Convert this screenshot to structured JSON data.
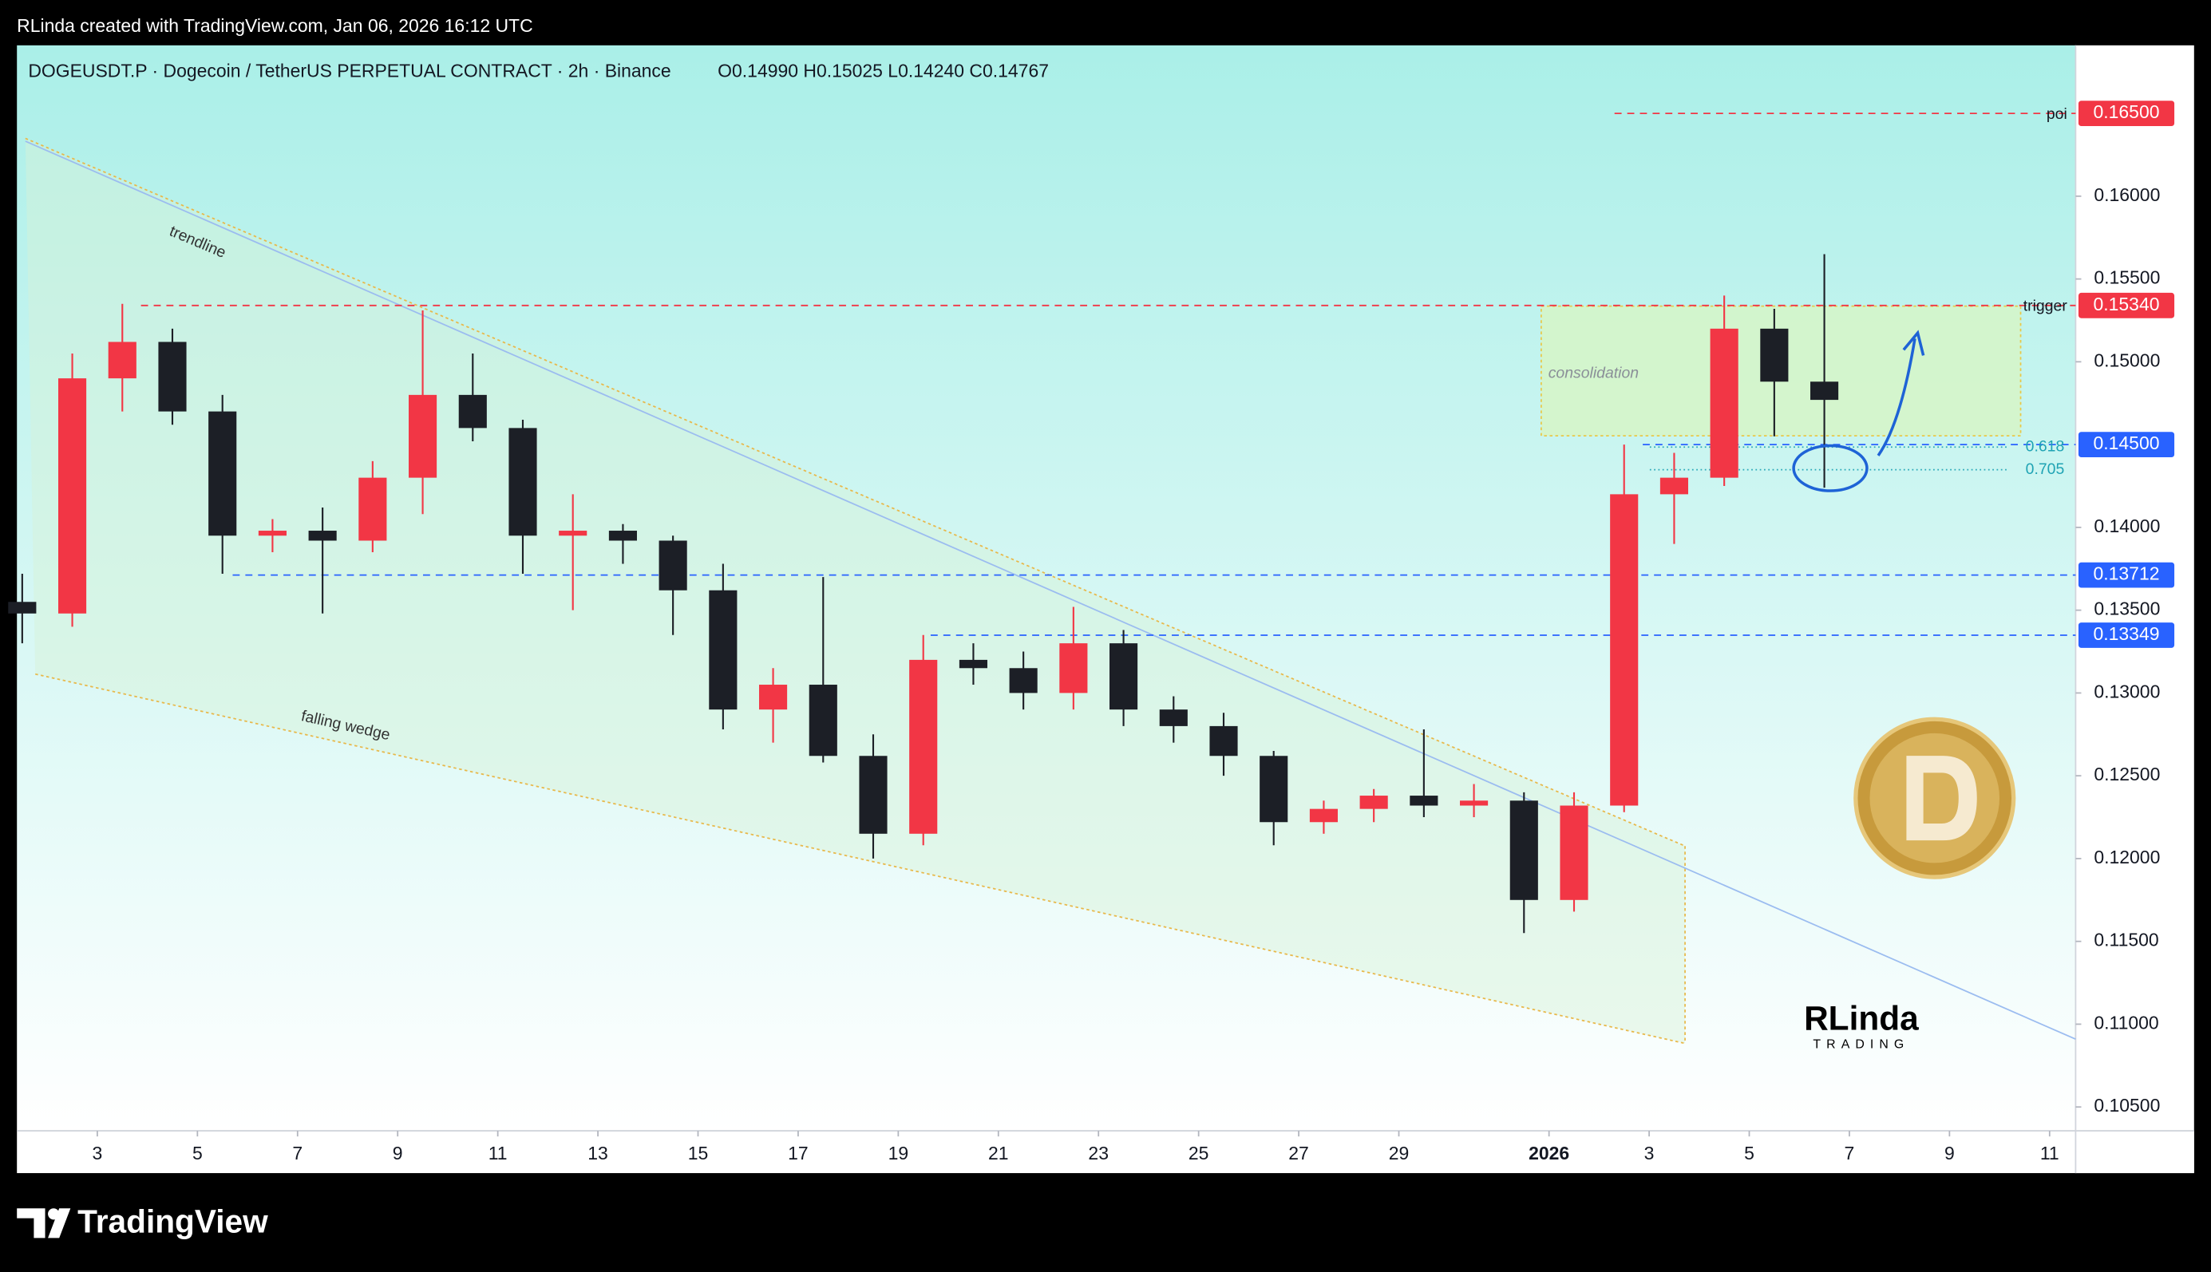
{
  "chart_data": {
    "type": "candlestick",
    "attribution": "RLinda created with TradingView.com, Jan 06, 2026 16:12 UTC",
    "title": "DOGEUSDT.P · Dogecoin / TetherUS PERPETUAL CONTRACT · 2h · Binance",
    "ohlc_text": "O0.14990 H0.15025 L0.14240 C0.14767",
    "x": [
      1.5,
      2.5,
      3.5,
      4.5,
      5.5,
      6.5,
      7.5,
      8.5,
      9.5,
      10.5,
      11.5,
      12.5,
      13.5,
      14.5,
      15.5,
      16.5,
      17.5,
      18.5,
      19.5,
      20.5,
      21.5,
      22.5,
      23.5,
      24.5,
      25.5,
      26.5,
      27.5,
      28.5,
      29.5,
      30.5,
      31.5,
      32.5,
      33.5,
      34.5,
      35.5,
      36.5,
      37.5
    ],
    "open": [
      0.1355,
      0.1348,
      0.149,
      0.1512,
      0.147,
      0.1395,
      0.1398,
      0.1392,
      0.143,
      0.148,
      0.146,
      0.1395,
      0.1398,
      0.1392,
      0.1362,
      0.129,
      0.1305,
      0.1262,
      0.1215,
      0.132,
      0.1315,
      0.13,
      0.133,
      0.129,
      0.128,
      0.1262,
      0.1222,
      0.123,
      0.1238,
      0.1232,
      0.1235,
      0.1175,
      0.1232,
      0.142,
      0.143,
      0.152,
      0.1488
    ],
    "high": [
      0.1372,
      0.1505,
      0.1535,
      0.152,
      0.148,
      0.1405,
      0.1412,
      0.144,
      0.1531,
      0.1505,
      0.1465,
      0.142,
      0.1402,
      0.1395,
      0.1378,
      0.1315,
      0.137,
      0.1275,
      0.1335,
      0.133,
      0.1325,
      0.1352,
      0.1338,
      0.1298,
      0.1288,
      0.1265,
      0.1235,
      0.1242,
      0.1278,
      0.1245,
      0.124,
      0.124,
      0.145,
      0.1445,
      0.154,
      0.1532,
      0.1565
    ],
    "low": [
      0.133,
      0.134,
      0.147,
      0.1462,
      0.1372,
      0.1385,
      0.1348,
      0.1385,
      0.1408,
      0.1452,
      0.1372,
      0.135,
      0.1378,
      0.1335,
      0.1278,
      0.127,
      0.1258,
      0.12,
      0.1208,
      0.1305,
      0.129,
      0.129,
      0.128,
      0.127,
      0.125,
      0.1208,
      0.1215,
      0.1222,
      0.1225,
      0.1225,
      0.1155,
      0.1168,
      0.1228,
      0.139,
      0.1425,
      0.1455,
      0.1424
    ],
    "close": [
      0.1348,
      0.149,
      0.1512,
      0.147,
      0.1395,
      0.1398,
      0.1392,
      0.143,
      0.148,
      0.146,
      0.1395,
      0.1398,
      0.1392,
      0.1362,
      0.129,
      0.1305,
      0.1262,
      0.1215,
      0.132,
      0.1315,
      0.13,
      0.133,
      0.129,
      0.128,
      0.1262,
      0.1222,
      0.123,
      0.1238,
      0.1232,
      0.1235,
      0.1175,
      0.1232,
      0.142,
      0.143,
      0.152,
      0.1488,
      0.1477
    ],
    "up_color": "#f23645",
    "down_color": "#1c1f26",
    "xlim": [
      1.394,
      42.52
    ],
    "xticks": [
      3,
      5,
      7,
      9,
      11,
      13,
      15,
      17,
      19,
      21,
      23,
      25,
      27,
      29,
      {
        "value": 32,
        "label": "2026"
      },
      {
        "value": 34,
        "label": "3"
      },
      {
        "value": 36,
        "label": "5"
      },
      {
        "value": 38,
        "label": "7"
      },
      {
        "value": 40,
        "label": "9"
      },
      {
        "value": 42,
        "label": "11"
      }
    ],
    "ylim": [
      0.10356,
      0.16911
    ],
    "yticks": [
      {
        "value": 0.16,
        "label": "0.16000"
      },
      {
        "value": 0.155,
        "label": "0.15500"
      },
      {
        "value": 0.15,
        "label": "0.15000"
      },
      {
        "value": 0.14,
        "label": "0.14000"
      },
      {
        "value": 0.135,
        "label": "0.13500"
      },
      {
        "value": 0.13,
        "label": "0.13000"
      },
      {
        "value": 0.125,
        "label": "0.12500"
      },
      {
        "value": 0.12,
        "label": "0.12000"
      },
      {
        "value": 0.115,
        "label": "0.11500"
      },
      {
        "value": 0.11,
        "label": "0.11000"
      },
      {
        "value": 0.105,
        "label": "0.10500"
      }
    ],
    "levels": [
      {
        "name": "poi",
        "value": 0.165,
        "label": "0.16500",
        "color": "#f23645"
      },
      {
        "name": "trigger",
        "value": 0.1534,
        "label": "0.15340",
        "color": "#f23645"
      },
      {
        "value": 0.145,
        "label": "0.14500",
        "color": "#2962ff"
      },
      {
        "value": 0.13712,
        "label": "0.13712",
        "color": "#2962ff"
      },
      {
        "value": 0.13349,
        "label": "0.13349",
        "color": "#2962ff"
      }
    ],
    "fib": [
      {
        "ratio": 0.618,
        "price": 0.14485
      },
      {
        "ratio": 0.705,
        "price": 0.14348
      }
    ],
    "trendline_label": "trendline",
    "wedge_label": "falling wedge",
    "zone_label": "consolidation",
    "logo_text": "RLinda",
    "logo_subtext": "TRADING",
    "brand": "TradingView"
  }
}
